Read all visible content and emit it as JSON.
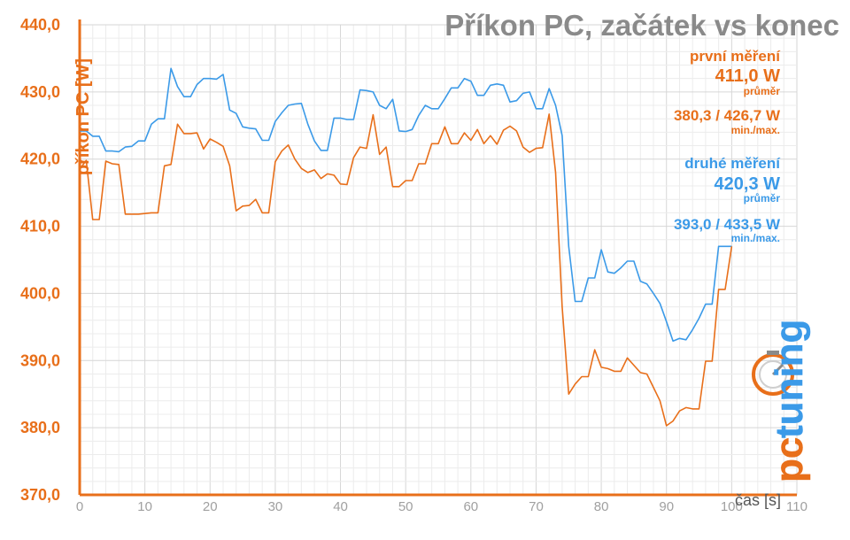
{
  "chart_data": {
    "type": "line",
    "title": "Příkon PC, začátek vs konec",
    "ylabel": "příkon PC [W]",
    "xlabel": "čas [s]",
    "xlim": [
      0,
      110
    ],
    "ylim": [
      370,
      440
    ],
    "x_ticks": [
      "0",
      "10",
      "20",
      "30",
      "40",
      "50",
      "60",
      "70",
      "80",
      "90",
      "100",
      "110"
    ],
    "y_ticks": [
      "370,0",
      "380,0",
      "390,0",
      "400,0",
      "410,0",
      "420,0",
      "430,0",
      "440,0"
    ],
    "grid": true,
    "series": [
      {
        "name": "první měření",
        "color": "#e86f1a",
        "x": [
          0,
          1,
          2,
          3,
          4,
          5,
          6,
          7,
          8,
          9,
          10,
          11,
          12,
          13,
          14,
          15,
          16,
          17,
          18,
          19,
          20,
          21,
          22,
          23,
          24,
          25,
          26,
          27,
          28,
          29,
          30,
          31,
          32,
          33,
          34,
          35,
          36,
          37,
          38,
          39,
          40,
          41,
          42,
          43,
          44,
          45,
          46,
          47,
          48,
          49,
          50,
          51,
          52,
          53,
          54,
          55,
          56,
          57,
          58,
          59,
          60,
          61,
          62,
          63,
          64,
          65,
          66,
          67,
          68,
          69,
          70,
          71,
          72,
          73,
          74,
          75,
          76,
          77,
          78,
          79,
          80,
          81,
          82,
          83,
          84,
          85,
          86,
          87,
          88,
          89,
          90,
          91,
          92,
          93,
          94,
          95,
          96,
          97,
          98,
          99,
          100
        ],
        "y": [
          418.5,
          419.8,
          411.0,
          411.0,
          419.7,
          419.3,
          419.2,
          411.8,
          411.8,
          411.8,
          411.9,
          412.0,
          412.0,
          419.0,
          419.2,
          425.2,
          423.8,
          423.8,
          423.9,
          421.5,
          423.0,
          422.5,
          421.9,
          419.0,
          412.3,
          413.0,
          413.1,
          414.0,
          412.0,
          412.0,
          419.6,
          421.2,
          422.1,
          420.0,
          418.6,
          418.0,
          418.4,
          417.1,
          417.8,
          417.6,
          416.3,
          416.2,
          420.2,
          421.8,
          421.6,
          426.6,
          420.7,
          421.8,
          415.9,
          415.9,
          416.8,
          416.8,
          419.3,
          419.3,
          422.3,
          422.3,
          424.8,
          422.3,
          422.3,
          423.9,
          422.8,
          424.4,
          422.3,
          423.5,
          422.2,
          424.3,
          424.9,
          424.2,
          421.8,
          421.0,
          421.6,
          421.7,
          426.7,
          418.0,
          398.0,
          385.0,
          386.5,
          387.6,
          387.6,
          391.6,
          389.0,
          388.8,
          388.4,
          388.4,
          390.4,
          389.3,
          388.2,
          388.0,
          386.0,
          384.0,
          380.3,
          381.0,
          382.5,
          383.0,
          382.8,
          382.8,
          389.9,
          389.9,
          400.6,
          400.6,
          407.0
        ]
      },
      {
        "name": "druhé měření",
        "color": "#3b9ae8",
        "x": [
          0,
          1,
          2,
          3,
          4,
          5,
          6,
          7,
          8,
          9,
          10,
          11,
          12,
          13,
          14,
          15,
          16,
          17,
          18,
          19,
          20,
          21,
          22,
          23,
          24,
          25,
          26,
          27,
          28,
          29,
          30,
          31,
          32,
          33,
          34,
          35,
          36,
          37,
          38,
          39,
          40,
          41,
          42,
          43,
          44,
          45,
          46,
          47,
          48,
          49,
          50,
          51,
          52,
          53,
          54,
          55,
          56,
          57,
          58,
          59,
          60,
          61,
          62,
          63,
          64,
          65,
          66,
          67,
          68,
          69,
          70,
          71,
          72,
          73,
          74,
          75,
          76,
          77,
          78,
          79,
          80,
          81,
          82,
          83,
          84,
          85,
          86,
          87,
          88,
          89,
          90,
          91,
          92,
          93,
          94,
          95,
          96,
          97,
          98,
          99,
          100
        ],
        "y": [
          424.2,
          424.2,
          423.4,
          423.4,
          421.2,
          421.2,
          421.1,
          421.8,
          421.9,
          422.7,
          422.7,
          425.2,
          426.0,
          426.0,
          433.5,
          430.8,
          429.3,
          429.3,
          431.1,
          432.0,
          432.0,
          431.9,
          432.6,
          427.3,
          426.8,
          424.8,
          424.6,
          424.5,
          422.8,
          422.8,
          425.6,
          426.9,
          428.0,
          428.2,
          428.3,
          425.2,
          422.7,
          421.3,
          421.3,
          426.1,
          426.1,
          425.9,
          425.9,
          430.3,
          430.2,
          430.0,
          428.0,
          427.5,
          428.9,
          424.2,
          424.1,
          424.4,
          426.5,
          428.0,
          427.5,
          427.5,
          429.0,
          430.6,
          430.6,
          432.0,
          431.6,
          429.5,
          429.5,
          431.0,
          431.2,
          431.0,
          428.5,
          428.7,
          429.8,
          430.0,
          427.5,
          427.5,
          430.5,
          428.0,
          423.5,
          407.0,
          398.8,
          398.8,
          402.3,
          402.3,
          406.5,
          403.2,
          403.0,
          403.8,
          404.8,
          404.8,
          401.8,
          401.4,
          400.0,
          398.5,
          395.8,
          392.9,
          393.3,
          393.1,
          394.6,
          396.3,
          398.4,
          398.4,
          407.0,
          407.0,
          407.0
        ]
      }
    ],
    "annotations": {
      "s1_name": "první měření",
      "s1_avg": "411,0 W",
      "s1_avg_label": "průměr",
      "s1_minmax": "380,3 / 426,7 W",
      "s1_minmax_label": "min./max.",
      "s2_name": "druhé měření",
      "s2_avg": "420,3 W",
      "s2_avg_label": "průměr",
      "s2_minmax": "393,0 / 433,5 W",
      "s2_minmax_label": "min./max."
    }
  },
  "logo": {
    "text": "pctuning",
    "icon": "stopwatch-icon",
    "pc_color": "#e86f1a",
    "tuning_color": "#3b9ae8"
  }
}
